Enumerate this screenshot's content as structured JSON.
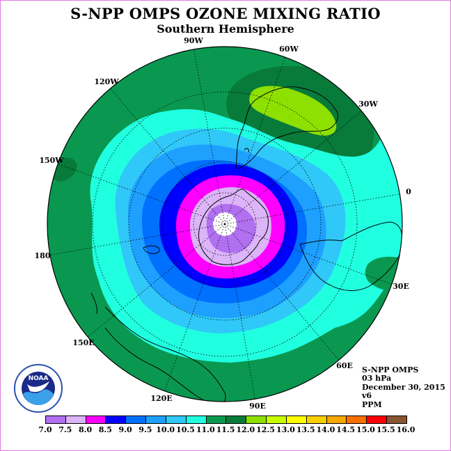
{
  "chart_data": {
    "type": "heatmap",
    "title": "S-NPP OMPS OZONE MIXING RATIO",
    "subtitle": "Southern Hemisphere",
    "projection": "south polar stereographic",
    "longitude_labels": [
      "90W",
      "60W",
      "30W",
      "0",
      "30E",
      "60E",
      "90E",
      "120E",
      "150E",
      "180",
      "150W",
      "120W"
    ],
    "info": [
      "S-NPP OMPS",
      "03 hPa",
      "December 30, 2015",
      "v6",
      "PPM"
    ],
    "colorbar": {
      "ticks": [
        "7.0",
        "7.5",
        "8.0",
        "8.5",
        "9.0",
        "9.5",
        "10.0",
        "10.5",
        "11.0",
        "11.5",
        "12.0",
        "12.5",
        "13.0",
        "13.5",
        "14.0",
        "14.5",
        "15.0",
        "15.5",
        "16.0"
      ],
      "colors": [
        "#b070f0",
        "#dcb4f8",
        "#ff00ff",
        "#0000ff",
        "#0070ff",
        "#1ea0ff",
        "#30c8f8",
        "#20ffe0",
        "#0a9850",
        "#087a3a",
        "#8ee000",
        "#c8ff00",
        "#ffff00",
        "#f8d000",
        "#f8a800",
        "#f87000",
        "#f80000",
        "#885533"
      ]
    },
    "levels": [
      {
        "range": "11.0-11.5",
        "color": "#0a9850"
      },
      {
        "range": "10.5-11.0",
        "color": "#20ffe0"
      },
      {
        "range": "10.0-10.5",
        "color": "#30c8f8"
      },
      {
        "range": "9.5-10.0",
        "color": "#1ea0ff"
      },
      {
        "range": "9.0-9.5",
        "color": "#0070ff"
      },
      {
        "range": "8.5-9.0",
        "color": "#0000ff"
      },
      {
        "range": "8.0-8.5",
        "color": "#ff00ff"
      },
      {
        "range": "7.5-8.0",
        "color": "#dcb4f8"
      },
      {
        "range": "7.0-7.5",
        "color": "#b070f0"
      }
    ],
    "regions": [
      {
        "range": "11.5-12.0",
        "location": "South Atlantic / South America",
        "color": "#087a3a"
      },
      {
        "range": "12.0-12.5",
        "location": "South Atlantic / South America",
        "color": "#8ee000"
      }
    ],
    "grid": true
  },
  "logo": {
    "text": "NOAA"
  }
}
